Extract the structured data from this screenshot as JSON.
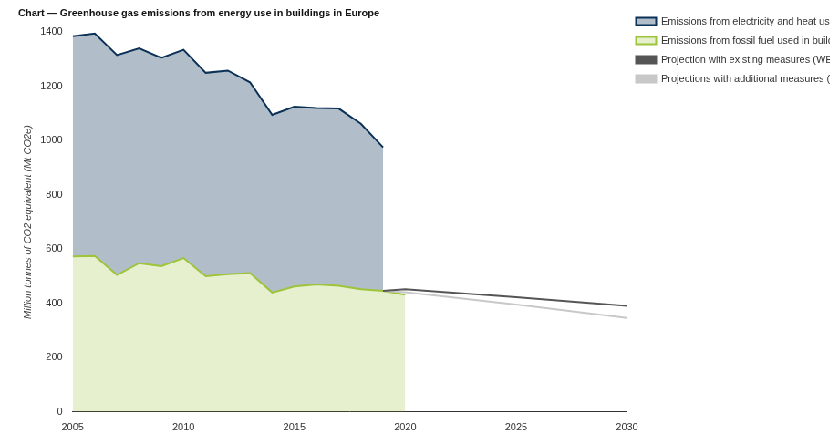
{
  "chart_data": {
    "type": "area",
    "title": "Chart — Greenhouse gas emissions from energy use in buildings in Europe",
    "y_label": "Million tonnes of CO2 equivalent (Mt CO2e)",
    "stacked": true,
    "grid": false,
    "legend": "top-right",
    "xlim": [
      2005,
      2030
    ],
    "xticks": [
      2005,
      2010,
      2015,
      2020,
      2025,
      2030
    ],
    "ylim": [
      0,
      1400
    ],
    "yticks": [
      0,
      200,
      400,
      600,
      800,
      1000,
      1200,
      1400
    ],
    "series": [
      {
        "name": "Emissions from electricity and heat used in buildings",
        "type": "area",
        "color": "#0b3157",
        "x": [
          2005,
          2006,
          2007,
          2008,
          2009,
          2010,
          2011,
          2012,
          2013,
          2014,
          2015,
          2016,
          2017,
          2018,
          2019
        ],
        "values": [
          812,
          820,
          810,
          792,
          768,
          768,
          750,
          750,
          703,
          655,
          663,
          650,
          653,
          610,
          529
        ]
      },
      {
        "name": "Emissions from fossil fuel used in buildings",
        "type": "area",
        "color": "#9dc43a",
        "x": [
          2005,
          2006,
          2007,
          2008,
          2009,
          2010,
          2011,
          2012,
          2013,
          2014,
          2015,
          2016,
          2017,
          2018,
          2019,
          2020
        ],
        "values": [
          573,
          575,
          505,
          548,
          537,
          567,
          500,
          508,
          512,
          440,
          462,
          470,
          465,
          452,
          446,
          432
        ]
      },
      {
        "name": "Projection with existing measures (WEM)",
        "type": "line",
        "color": "#555555",
        "x": [
          2019,
          2020,
          2025,
          2030
        ],
        "values": [
          446,
          452,
          423,
          391
        ]
      },
      {
        "name": "Projections with additional measures (WAM)",
        "type": "line",
        "color": "#c8c8c8",
        "x": [
          2019,
          2020,
          2025,
          2030
        ],
        "values": [
          446,
          441,
          396,
          346
        ]
      }
    ]
  }
}
